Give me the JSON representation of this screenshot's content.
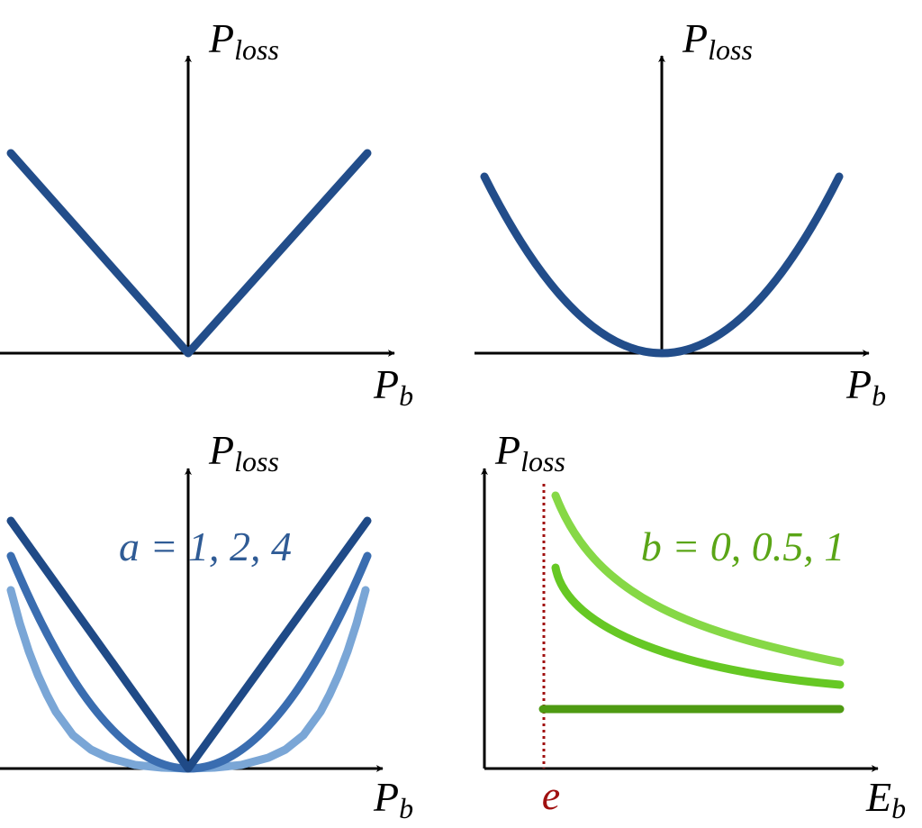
{
  "panels": [
    {
      "y_label": {
        "base": "P",
        "sub": "loss"
      },
      "x_label": {
        "base": "P",
        "sub": "b"
      }
    },
    {
      "y_label": {
        "base": "P",
        "sub": "loss"
      },
      "x_label": {
        "base": "P",
        "sub": "b"
      }
    },
    {
      "y_label": {
        "base": "P",
        "sub": "loss"
      },
      "x_label": {
        "base": "P",
        "sub": "b"
      },
      "annotation": "a = 1, 2, 4"
    },
    {
      "y_label": {
        "base": "P",
        "sub": "loss"
      },
      "x_label": {
        "base": "E",
        "sub": "b"
      },
      "annotation": "b = 0, 0.5, 1",
      "marker": "e"
    }
  ]
}
